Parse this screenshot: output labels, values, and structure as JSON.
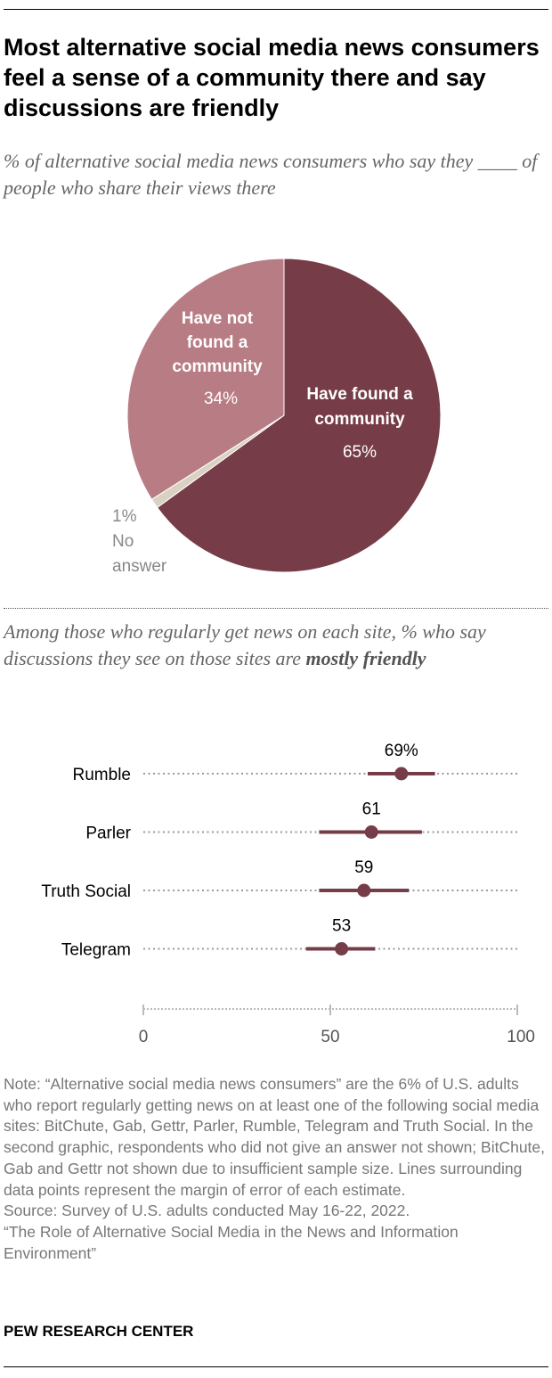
{
  "title": "Most alternative social media news consumers feel a sense of a community there and say discussions are friendly",
  "subtitle1": "% of alternative social media news consumers who say they ____  of people who share their views there",
  "subtitle2_a": "Among those who regularly get news on each site, % who say discussions they see on those sites are ",
  "subtitle2_b": "mostly friendly",
  "chart_data": [
    {
      "type": "pie",
      "slices": [
        {
          "label": "Have found a community",
          "value": 65,
          "display": "65%",
          "color": "#763c47"
        },
        {
          "label": "No answer",
          "value": 1,
          "display": "1%",
          "color": "#d9d2c3"
        },
        {
          "label": "Have not found a community",
          "value": 34,
          "display": "34%",
          "color": "#b87c84"
        }
      ]
    },
    {
      "type": "dot-range",
      "xlim": [
        0,
        100
      ],
      "xticks": [
        "0",
        "50",
        "100"
      ],
      "color": "#763c47",
      "categories": [
        "Rumble",
        "Parler",
        "Truth Social",
        "Telegram"
      ],
      "values": [
        69,
        61,
        59,
        53
      ],
      "labels": [
        "69%",
        "61",
        "59",
        "53"
      ],
      "ranges": [
        [
          60,
          78
        ],
        [
          47,
          74.5
        ],
        [
          47,
          71
        ],
        [
          43.5,
          62
        ]
      ]
    }
  ],
  "pie_labels": {
    "found": [
      "Have found a",
      "community"
    ],
    "not_found": [
      "Have not",
      "found a",
      "community"
    ],
    "no_answer": [
      "1%",
      "No",
      "answer"
    ]
  },
  "note": [
    "Note: “Alternative social media news consumers” are the 6% of U.S. adults who report regularly getting news on at least one of the following social media sites: BitChute, Gab, Gettr, Parler, Rumble, Telegram and Truth Social. In the second graphic, respondents who did not give an answer not shown; BitChute, Gab and Gettr not shown due to insufficient sample size. Lines surrounding data points represent the margin of error of each estimate.",
    "Source: Survey of U.S. adults conducted May 16-22, 2022.",
    "“The Role of Alternative Social Media in the News and Information Environment”"
  ],
  "brand": "PEW RESEARCH CENTER"
}
